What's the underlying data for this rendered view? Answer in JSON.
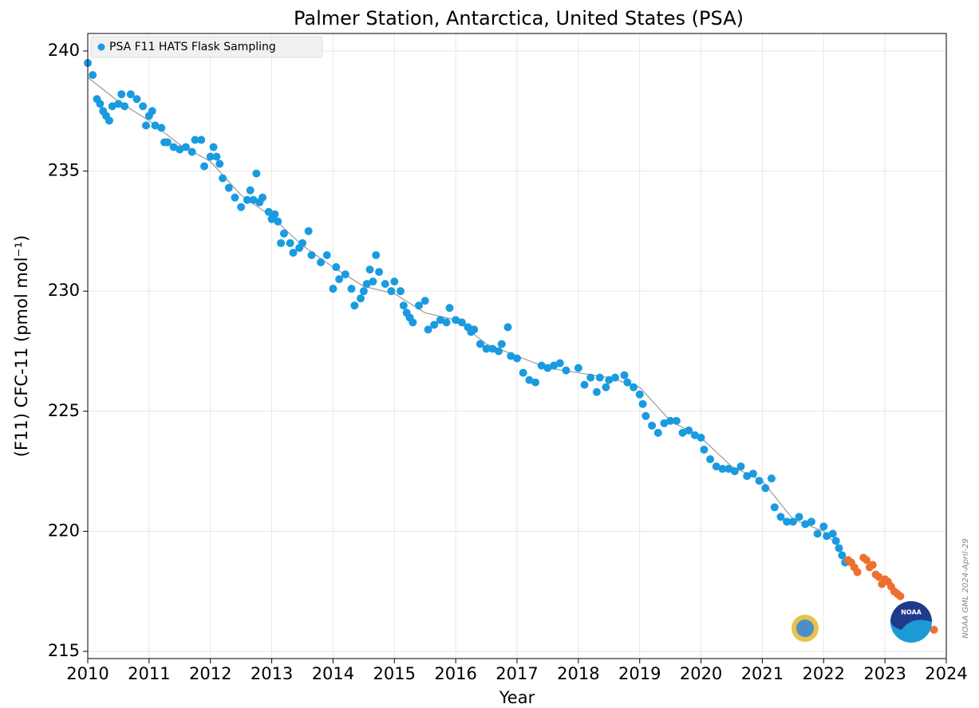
{
  "chart_data": {
    "type": "scatter",
    "title": "Palmer Station, Antarctica, United States (PSA)",
    "x_label": "Year",
    "y_label": "(F11) CFC-11 (pmol mol⁻¹)",
    "annotation": "NOAA GML 2024-April-29",
    "xlim": [
      2010,
      2024
    ],
    "ylim": [
      214.7,
      240.73
    ],
    "xticks": [
      2010,
      2011,
      2012,
      2013,
      2014,
      2015,
      2016,
      2017,
      2018,
      2019,
      2020,
      2021,
      2022,
      2023,
      2024
    ],
    "yticks": [
      215,
      220,
      225,
      230,
      235,
      240
    ],
    "grid": true,
    "legend": "upper left",
    "series": [
      {
        "name": "PSA F11 HATS Flask Sampling",
        "color": "#1a9be0",
        "x": [
          2010.0,
          2010.08,
          2010.15,
          2010.2,
          2010.25,
          2010.3,
          2010.35,
          2010.4,
          2010.5,
          2010.55,
          2010.6,
          2010.7,
          2010.8,
          2010.9,
          2010.95,
          2011.0,
          2011.05,
          2011.1,
          2011.2,
          2011.25,
          2011.3,
          2011.4,
          2011.5,
          2011.6,
          2011.7,
          2011.75,
          2011.85,
          2011.9,
          2012.0,
          2012.05,
          2012.1,
          2012.15,
          2012.2,
          2012.3,
          2012.4,
          2012.5,
          2012.6,
          2012.65,
          2012.7,
          2012.75,
          2012.8,
          2012.85,
          2012.95,
          2013.0,
          2013.05,
          2013.1,
          2013.15,
          2013.2,
          2013.3,
          2013.35,
          2013.45,
          2013.5,
          2013.6,
          2013.65,
          2013.8,
          2013.9,
          2014.0,
          2014.05,
          2014.1,
          2014.2,
          2014.3,
          2014.35,
          2014.45,
          2014.5,
          2014.55,
          2014.6,
          2014.65,
          2014.7,
          2014.75,
          2014.85,
          2014.95,
          2015.0,
          2015.1,
          2015.15,
          2015.2,
          2015.25,
          2015.3,
          2015.4,
          2015.5,
          2015.55,
          2015.65,
          2015.75,
          2015.85,
          2015.9,
          2016.0,
          2016.1,
          2016.2,
          2016.25,
          2016.3,
          2016.4,
          2016.5,
          2016.6,
          2016.7,
          2016.75,
          2016.85,
          2016.9,
          2017.0,
          2017.1,
          2017.2,
          2017.3,
          2017.4,
          2017.5,
          2017.6,
          2017.7,
          2017.8,
          2018.0,
          2018.1,
          2018.2,
          2018.3,
          2018.35,
          2018.45,
          2018.5,
          2018.6,
          2018.75,
          2018.8,
          2018.9,
          2019.0,
          2019.05,
          2019.1,
          2019.2,
          2019.3,
          2019.4,
          2019.5,
          2019.6,
          2019.7,
          2019.8,
          2019.9,
          2020.0,
          2020.05,
          2020.15,
          2020.25,
          2020.35,
          2020.45,
          2020.55,
          2020.65,
          2020.75,
          2020.85,
          2020.95,
          2021.05,
          2021.15,
          2021.2,
          2021.3,
          2021.4,
          2021.5,
          2021.6,
          2021.7,
          2021.8,
          2021.9,
          2022.0,
          2022.05,
          2022.15,
          2022.2,
          2022.25,
          2022.3,
          2022.35
        ],
        "values": [
          239.5,
          239.0,
          238.0,
          237.8,
          237.5,
          237.3,
          237.1,
          237.7,
          237.8,
          238.2,
          237.7,
          238.2,
          238.0,
          237.7,
          236.9,
          237.3,
          237.5,
          236.9,
          236.8,
          236.2,
          236.2,
          236.0,
          235.9,
          236.0,
          235.8,
          236.3,
          236.3,
          235.2,
          235.6,
          236.0,
          235.6,
          235.3,
          234.7,
          234.3,
          233.9,
          233.5,
          233.8,
          234.2,
          233.8,
          234.9,
          233.7,
          233.9,
          233.3,
          233.0,
          233.2,
          232.9,
          232.0,
          232.4,
          232.0,
          231.6,
          231.8,
          232.0,
          232.5,
          231.5,
          231.2,
          231.5,
          230.1,
          231.0,
          230.5,
          230.7,
          230.1,
          229.4,
          229.7,
          230.0,
          230.3,
          230.9,
          230.4,
          231.5,
          230.8,
          230.3,
          230.0,
          230.4,
          230.0,
          229.4,
          229.1,
          228.9,
          228.7,
          229.4,
          229.6,
          228.4,
          228.6,
          228.8,
          228.7,
          229.3,
          228.8,
          228.7,
          228.5,
          228.3,
          228.4,
          227.8,
          227.6,
          227.6,
          227.5,
          227.8,
          228.5,
          227.3,
          227.2,
          226.6,
          226.3,
          226.2,
          226.9,
          226.8,
          226.9,
          227.0,
          226.7,
          226.8,
          226.1,
          226.4,
          225.8,
          226.4,
          226.0,
          226.3,
          226.4,
          226.5,
          226.2,
          226.0,
          225.7,
          225.3,
          224.8,
          224.4,
          224.1,
          224.5,
          224.6,
          224.6,
          224.1,
          224.2,
          224.0,
          223.9,
          223.4,
          223.0,
          222.7,
          222.6,
          222.6,
          222.5,
          222.7,
          222.3,
          222.4,
          222.1,
          221.8,
          222.2,
          221.0,
          220.6,
          220.4,
          220.4,
          220.6,
          220.3,
          220.4,
          219.9,
          220.2,
          219.8,
          219.9,
          219.6,
          219.3,
          219.0,
          218.7
        ]
      },
      {
        "color": "#ee7030",
        "x": [
          2022.4,
          2022.45,
          2022.5,
          2022.55,
          2022.65,
          2022.7,
          2022.75,
          2022.8,
          2022.85,
          2022.9,
          2022.95,
          2023.0,
          2023.05,
          2023.1,
          2023.15,
          2023.2,
          2023.25,
          2023.8
        ],
        "values": [
          218.8,
          218.7,
          218.5,
          218.3,
          218.9,
          218.8,
          218.5,
          218.6,
          218.2,
          218.1,
          217.8,
          218.0,
          217.9,
          217.7,
          217.5,
          217.4,
          217.3,
          215.9
        ]
      },
      {
        "color": "#999999",
        "style": "line",
        "x": [
          2010,
          2010.5,
          2011,
          2011.5,
          2012,
          2012.5,
          2013,
          2013.5,
          2014,
          2014.5,
          2015,
          2015.5,
          2016,
          2016.5,
          2017,
          2017.5,
          2018,
          2018.5,
          2019,
          2019.5,
          2020,
          2020.5,
          2021,
          2021.5,
          2022,
          2022.3
        ],
        "values": [
          238.9,
          237.9,
          237.1,
          236.1,
          235.4,
          234.0,
          233.1,
          231.9,
          231.0,
          230.2,
          229.9,
          229.1,
          228.8,
          227.8,
          227.3,
          226.8,
          226.6,
          226.4,
          226.0,
          224.6,
          223.9,
          222.7,
          222.1,
          220.5,
          220.0,
          219.2
        ]
      }
    ]
  }
}
